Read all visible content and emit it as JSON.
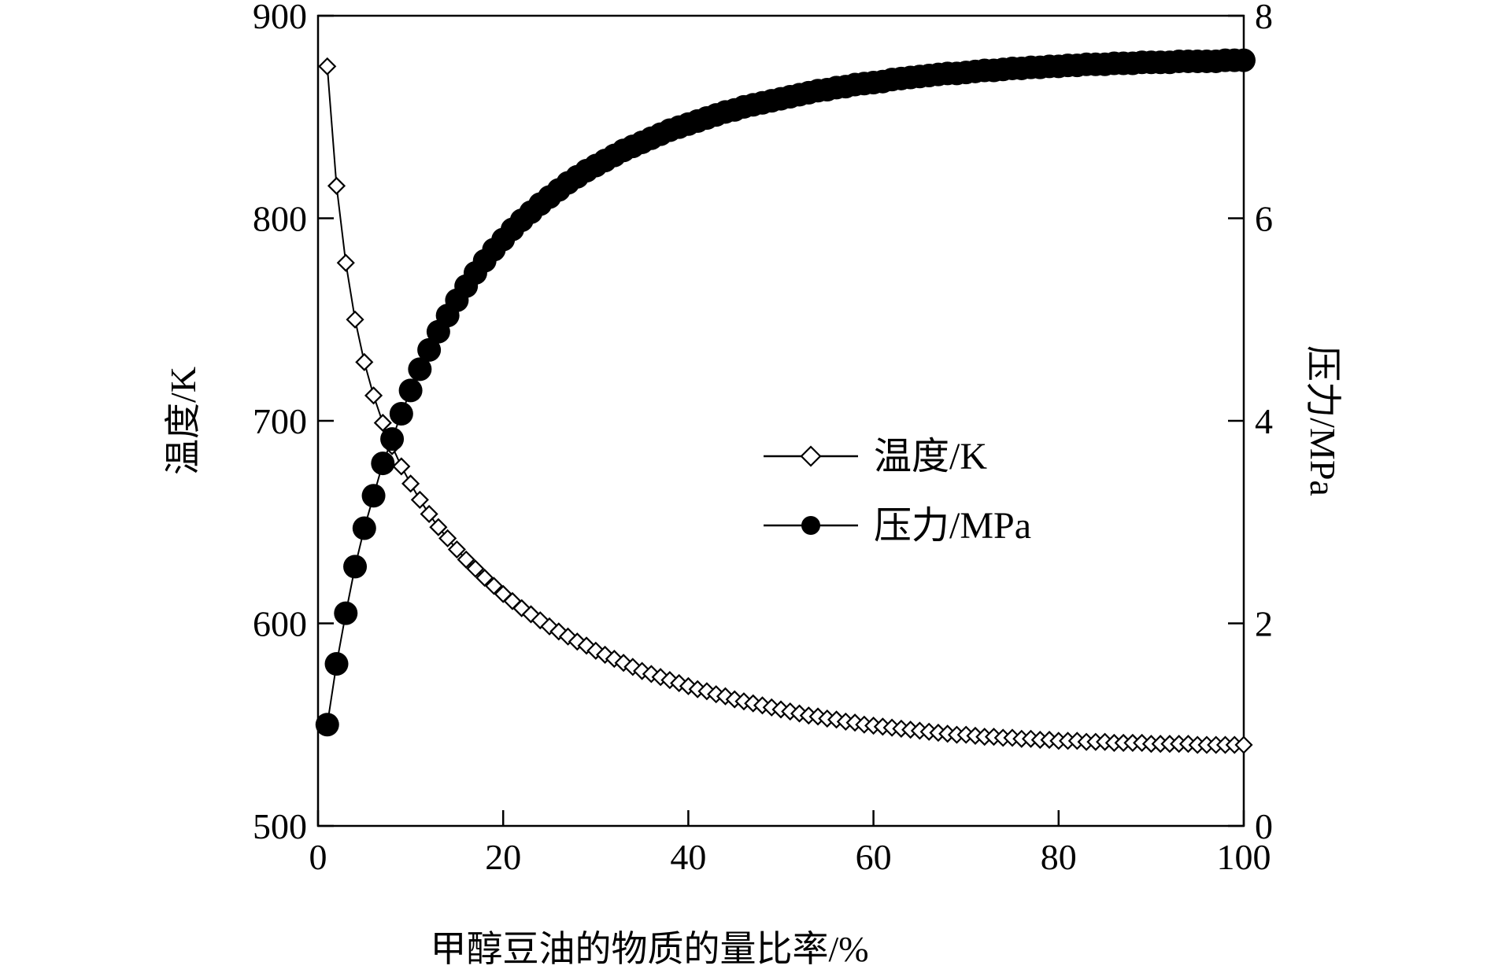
{
  "chart_data": {
    "type": "scatter",
    "xlabel": "甲醇豆油的物质的量比率/%",
    "ylabel_left": "温度/K",
    "ylabel_right": "压力/MPa",
    "xlim": [
      0,
      100
    ],
    "ylim_left": [
      500,
      900
    ],
    "ylim_right": [
      0,
      8
    ],
    "x_ticks": [
      "0",
      "20",
      "40",
      "60",
      "80",
      "100"
    ],
    "y_left_ticks": [
      "500",
      "600",
      "700",
      "800",
      "900"
    ],
    "y_right_ticks": [
      "0",
      "2",
      "4",
      "6",
      "8"
    ],
    "grid": false,
    "legend_position": "center-right",
    "series": [
      {
        "name": "温度/K",
        "axis": "left",
        "marker": "open-diamond",
        "line": "solid",
        "x": [
          1,
          2,
          3,
          4,
          5,
          6,
          7,
          8,
          9,
          10,
          11,
          12,
          13,
          14,
          15,
          16,
          17,
          18,
          19,
          20,
          21,
          22,
          23,
          24,
          25,
          26,
          27,
          28,
          29,
          30,
          31,
          32,
          33,
          34,
          35,
          36,
          37,
          38,
          39,
          40,
          41,
          42,
          43,
          44,
          45,
          46,
          47,
          48,
          49,
          50,
          51,
          52,
          53,
          54,
          55,
          56,
          57,
          58,
          59,
          60,
          61,
          62,
          63,
          64,
          65,
          66,
          67,
          68,
          69,
          70,
          71,
          72,
          73,
          74,
          75,
          76,
          77,
          78,
          79,
          80,
          81,
          82,
          83,
          84,
          85,
          86,
          87,
          88,
          89,
          90,
          91,
          92,
          93,
          94,
          95,
          96,
          97,
          98,
          99,
          100
        ],
        "values": [
          875.0,
          816.0,
          778.0,
          750.0,
          729.0,
          712.5,
          699.0,
          687.5,
          677.5,
          669.0,
          661.0,
          654.0,
          647.5,
          642.0,
          636.5,
          631.5,
          627.0,
          622.5,
          618.5,
          614.5,
          611.0,
          607.5,
          604.5,
          601.5,
          598.5,
          596.0,
          593.5,
          591.0,
          589.0,
          586.5,
          584.5,
          582.5,
          580.5,
          578.5,
          576.5,
          575.0,
          573.5,
          572.0,
          570.5,
          569.0,
          567.5,
          566.5,
          565.0,
          564.0,
          562.5,
          561.5,
          560.5,
          559.5,
          558.5,
          557.5,
          556.5,
          555.5,
          554.5,
          554.0,
          553.0,
          552.5,
          551.5,
          551.0,
          550.0,
          549.5,
          549.0,
          548.5,
          548.0,
          547.5,
          547.0,
          546.5,
          546.0,
          545.5,
          545.0,
          545.0,
          544.5,
          544.0,
          544.0,
          543.5,
          543.5,
          543.0,
          543.0,
          542.5,
          542.5,
          542.0,
          542.0,
          542.0,
          541.5,
          541.5,
          541.5,
          541.0,
          541.0,
          541.0,
          541.0,
          540.5,
          540.5,
          540.5,
          540.5,
          540.5,
          540.0,
          540.0,
          540.0,
          540.0,
          540.0,
          540.0
        ]
      },
      {
        "name": "压力/MPa",
        "axis": "right",
        "marker": "filled-circle",
        "line": "solid",
        "x": [
          1,
          2,
          3,
          4,
          5,
          6,
          7,
          8,
          9,
          10,
          11,
          12,
          13,
          14,
          15,
          16,
          17,
          18,
          19,
          20,
          21,
          22,
          23,
          24,
          25,
          26,
          27,
          28,
          29,
          30,
          31,
          32,
          33,
          34,
          35,
          36,
          37,
          38,
          39,
          40,
          41,
          42,
          43,
          44,
          45,
          46,
          47,
          48,
          49,
          50,
          51,
          52,
          53,
          54,
          55,
          56,
          57,
          58,
          59,
          60,
          61,
          62,
          63,
          64,
          65,
          66,
          67,
          68,
          69,
          70,
          71,
          72,
          73,
          74,
          75,
          76,
          77,
          78,
          79,
          80,
          81,
          82,
          83,
          84,
          85,
          86,
          87,
          88,
          89,
          90,
          91,
          92,
          93,
          94,
          95,
          96,
          97,
          98,
          99,
          100
        ],
        "values": [
          1.0,
          1.6,
          2.1,
          2.56,
          2.94,
          3.26,
          3.58,
          3.82,
          4.07,
          4.3,
          4.51,
          4.7,
          4.88,
          5.04,
          5.19,
          5.33,
          5.46,
          5.58,
          5.69,
          5.79,
          5.89,
          5.98,
          6.06,
          6.14,
          6.21,
          6.28,
          6.35,
          6.41,
          6.47,
          6.52,
          6.57,
          6.62,
          6.67,
          6.71,
          6.75,
          6.79,
          6.83,
          6.87,
          6.9,
          6.93,
          6.96,
          6.99,
          7.02,
          7.05,
          7.07,
          7.1,
          7.12,
          7.14,
          7.16,
          7.18,
          7.2,
          7.22,
          7.24,
          7.26,
          7.27,
          7.29,
          7.3,
          7.32,
          7.33,
          7.34,
          7.35,
          7.37,
          7.38,
          7.39,
          7.4,
          7.41,
          7.42,
          7.43,
          7.43,
          7.44,
          7.45,
          7.46,
          7.46,
          7.47,
          7.48,
          7.48,
          7.49,
          7.49,
          7.5,
          7.5,
          7.51,
          7.51,
          7.52,
          7.52,
          7.52,
          7.53,
          7.53,
          7.53,
          7.54,
          7.54,
          7.54,
          7.54,
          7.55,
          7.55,
          7.55,
          7.55,
          7.55,
          7.56,
          7.56,
          7.56
        ]
      }
    ]
  }
}
